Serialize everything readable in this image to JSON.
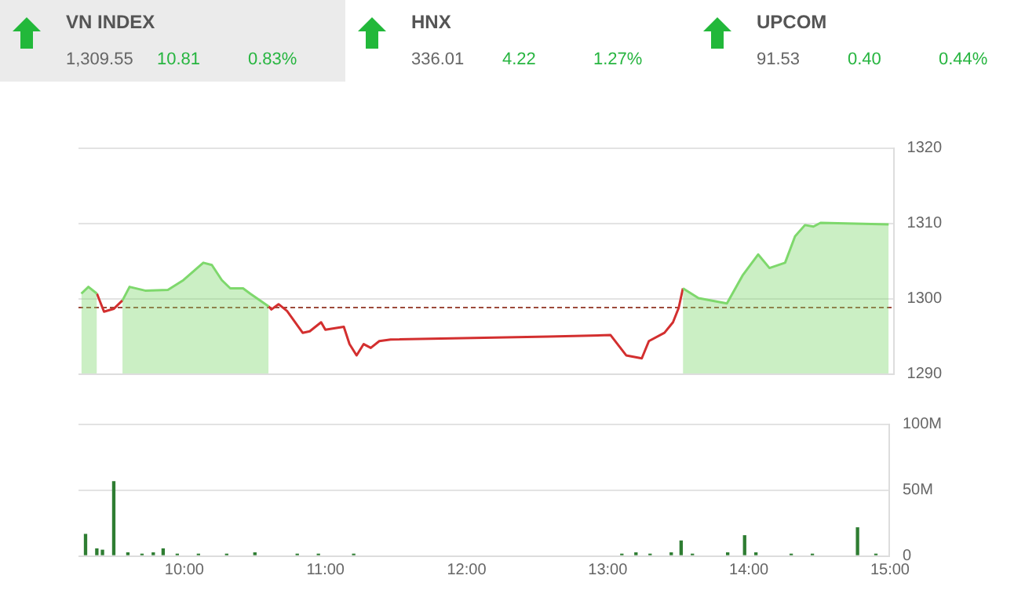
{
  "chart_data": [
    {
      "type": "other",
      "annotations": [
        "VN INDEX",
        "1,309.55",
        "10.81",
        "0.83%",
        "HNX",
        "336.01",
        "4.22",
        "1.27%",
        "UPCOM",
        "91.53",
        "0.40",
        "0.44%"
      ]
    },
    {
      "type": "area",
      "x": [
        9.27,
        9.32,
        9.38,
        9.43,
        9.5,
        9.56,
        9.61,
        9.72,
        9.88,
        9.99,
        10.13,
        10.19,
        10.26,
        10.32,
        10.41,
        10.46,
        10.59,
        10.61,
        10.66,
        10.72,
        10.83,
        10.88,
        10.96,
        10.99,
        11.12,
        11.16,
        11.21,
        11.26,
        11.31,
        11.37,
        11.45,
        12.56,
        13.0,
        13.11,
        13.22,
        13.27,
        13.38,
        13.44,
        13.48,
        13.51,
        13.62,
        13.82,
        13.93,
        14.04,
        14.12,
        14.23,
        14.3,
        14.37,
        14.43,
        14.48,
        14.96
      ],
      "series": [
        {
          "color": "#7ed86c",
          "values": [
            1300.6,
            1301.5,
            1300.6,
            null,
            null,
            1299.7,
            1301.5,
            1301,
            1301.1,
            1302.4,
            1304.7,
            1304.4,
            1302.4,
            1301.3,
            1301.3,
            1300.6,
            1298.9,
            null,
            null,
            null,
            null,
            null,
            null,
            null,
            null,
            null,
            null,
            null,
            null,
            null,
            null,
            null,
            null,
            null,
            null,
            null,
            null,
            null,
            null,
            1301.3,
            1300,
            1299.3,
            1303,
            1305.8,
            1304,
            1304.7,
            1308.2,
            1309.7,
            1309.5,
            1310,
            1309.8
          ]
        },
        {
          "type": "line",
          "color": "#d32f2f",
          "values": [
            null,
            null,
            1300.6,
            1298.2,
            1298.6,
            1299.7,
            null,
            null,
            null,
            null,
            null,
            null,
            null,
            null,
            null,
            null,
            1298.9,
            1298.5,
            1299.2,
            1298.3,
            1295.4,
            1295.6,
            1296.8,
            1295.8,
            1296.2,
            1293.9,
            1292.4,
            1293.9,
            1293.4,
            1294.3,
            1294.5,
            1294.9,
            1295.1,
            1292.4,
            1292,
            1294.3,
            1295.4,
            1296.8,
            1298.7,
            1301.3,
            null,
            null,
            null,
            null,
            null,
            null,
            null,
            null,
            null,
            null,
            null
          ]
        }
      ],
      "xlim": [
        9.25,
        15
      ],
      "ylim": [
        1290,
        1320
      ],
      "yticks": [
        1290,
        1300,
        1310,
        1320
      ],
      "ref_lines": [
        {
          "axis": "y",
          "value": 1298.74,
          "color": "#9c4a3a",
          "line_style": "dashed"
        }
      ],
      "grid": "y",
      "tick_labels": "y"
    },
    {
      "type": "bar",
      "x": [
        9.3,
        9.38,
        9.42,
        9.5,
        9.6,
        9.7,
        9.78,
        9.85,
        9.95,
        10.1,
        10.3,
        10.5,
        10.8,
        10.95,
        11.2,
        13.1,
        13.2,
        13.3,
        13.45,
        13.52,
        13.6,
        13.85,
        13.97,
        14.05,
        14.3,
        14.45,
        14.77,
        14.9
      ],
      "values": [
        16,
        5,
        4,
        56,
        2,
        1,
        2,
        5,
        1,
        1,
        1,
        2,
        1,
        1,
        1,
        1,
        2,
        1,
        2,
        11,
        1,
        2,
        15,
        2,
        1,
        1,
        21,
        1
      ],
      "color": "#2e7d32",
      "xlim": [
        9.25,
        15
      ],
      "xticks": [
        {
          "value": 10,
          "label": "10:00"
        },
        {
          "value": 11,
          "label": "11:00"
        },
        {
          "value": 12,
          "label": "12:00"
        },
        {
          "value": 13,
          "label": "13:00"
        },
        {
          "value": 14,
          "label": "14:00"
        },
        {
          "value": 15,
          "label": "15:00"
        }
      ],
      "ylim": [
        0,
        100
      ],
      "yticks": [
        0,
        {
          "value": 50,
          "label": "50M"
        },
        {
          "value": 100,
          "label": "100M"
        }
      ],
      "grid": "y"
    }
  ]
}
